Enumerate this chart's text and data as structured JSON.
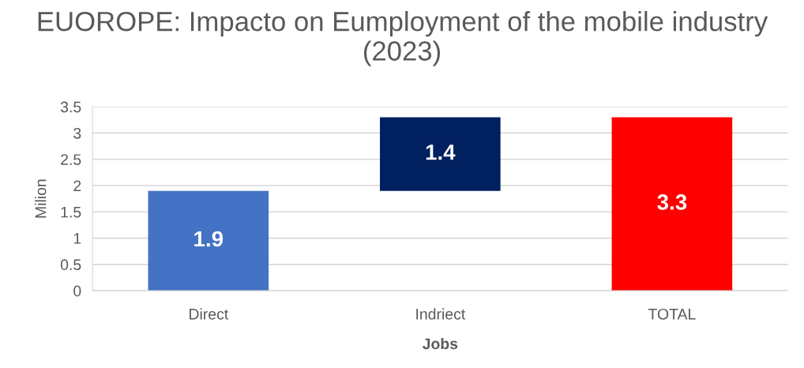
{
  "chart_data": {
    "type": "bar",
    "title": "EUOROPE: Impacto on Eumployment of the mobile industry (2023)",
    "xlabel": "Jobs",
    "ylabel": "Milion",
    "categories": [
      "Direct",
      "Indriect",
      "TOTAL"
    ],
    "values": [
      1.9,
      1.4,
      3.3
    ],
    "base": [
      0,
      1.9,
      0
    ],
    "colors": [
      "#4472c4",
      "#002060",
      "#ff0000"
    ],
    "data_labels": true,
    "ylim": [
      0,
      3.5
    ],
    "yticks": [
      0,
      0.5,
      1,
      1.5,
      2,
      2.5,
      3,
      3.5
    ],
    "grid": "y",
    "legend": false
  }
}
